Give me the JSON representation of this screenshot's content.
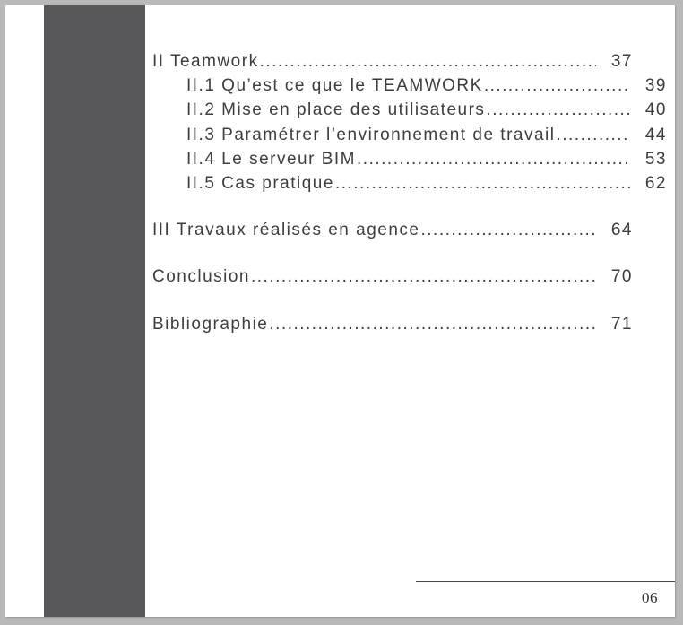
{
  "page": {
    "number": "06"
  },
  "toc": {
    "leader": "..........................................................................................",
    "entries": [
      {
        "label": "II Teamwork",
        "page": "37",
        "level": 0
      },
      {
        "label": "II.1 Qu’est ce que le TEAMWORK",
        "page": "39",
        "level": 1
      },
      {
        "label": "II.2 Mise en place des utilisateurs",
        "page": "40",
        "level": 1
      },
      {
        "label": "II.3 Paramétrer l’environnement de travail",
        "page": "44",
        "level": 1
      },
      {
        "label": "II.4 Le serveur BIM",
        "page": "53",
        "level": 1
      },
      {
        "label": "II.5 Cas pratique",
        "page": "62",
        "level": 1
      },
      {
        "label": "III Travaux réalisés en agence",
        "page": "64",
        "level": 0
      },
      {
        "label": "Conclusion",
        "page": "70",
        "level": 0
      },
      {
        "label": "Bibliographie",
        "page": "71",
        "level": 0
      }
    ]
  },
  "colors": {
    "canvas_background": "#b9b9b9",
    "page_background": "#ffffff",
    "accent_band": "#58585a",
    "text": "#3d3d3d",
    "footer_rule": "#454545",
    "page_number_text": "#2b2b33"
  }
}
